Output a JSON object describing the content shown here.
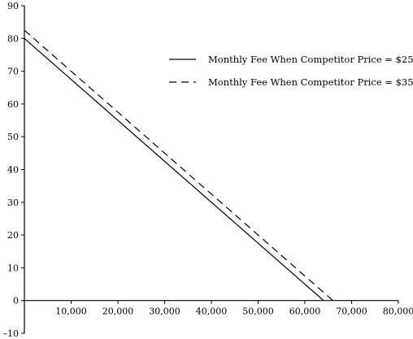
{
  "chart_data": {
    "type": "line",
    "title": "",
    "xlabel": "",
    "ylabel": "",
    "xlim": [
      0,
      80000
    ],
    "ylim": [
      -10,
      90
    ],
    "x_ticks": [
      10000,
      20000,
      30000,
      40000,
      50000,
      60000,
      70000,
      80000
    ],
    "x_tick_labels": [
      "10,000",
      "20,000",
      "30,000",
      "40,000",
      "50,000",
      "60,000",
      "70,000",
      "80,000"
    ],
    "y_ticks": [
      -10,
      0,
      10,
      20,
      30,
      40,
      50,
      60,
      70,
      80,
      90
    ],
    "y_tick_labels": [
      "–10",
      "0",
      "10",
      "20",
      "30",
      "40",
      "50",
      "60",
      "70",
      "80",
      "90"
    ],
    "grid": false,
    "legend_position": "top-right",
    "series": [
      {
        "name": "Monthly Fee When Competitor Price = $25",
        "line_style": "solid",
        "color": "#000000",
        "x": [
          0,
          64000
        ],
        "y": [
          80,
          0
        ]
      },
      {
        "name": "Monthly Fee When Competitor Price = $35",
        "line_style": "dashed",
        "color": "#000000",
        "x": [
          0,
          66000
        ],
        "y": [
          82.5,
          0
        ]
      }
    ]
  }
}
